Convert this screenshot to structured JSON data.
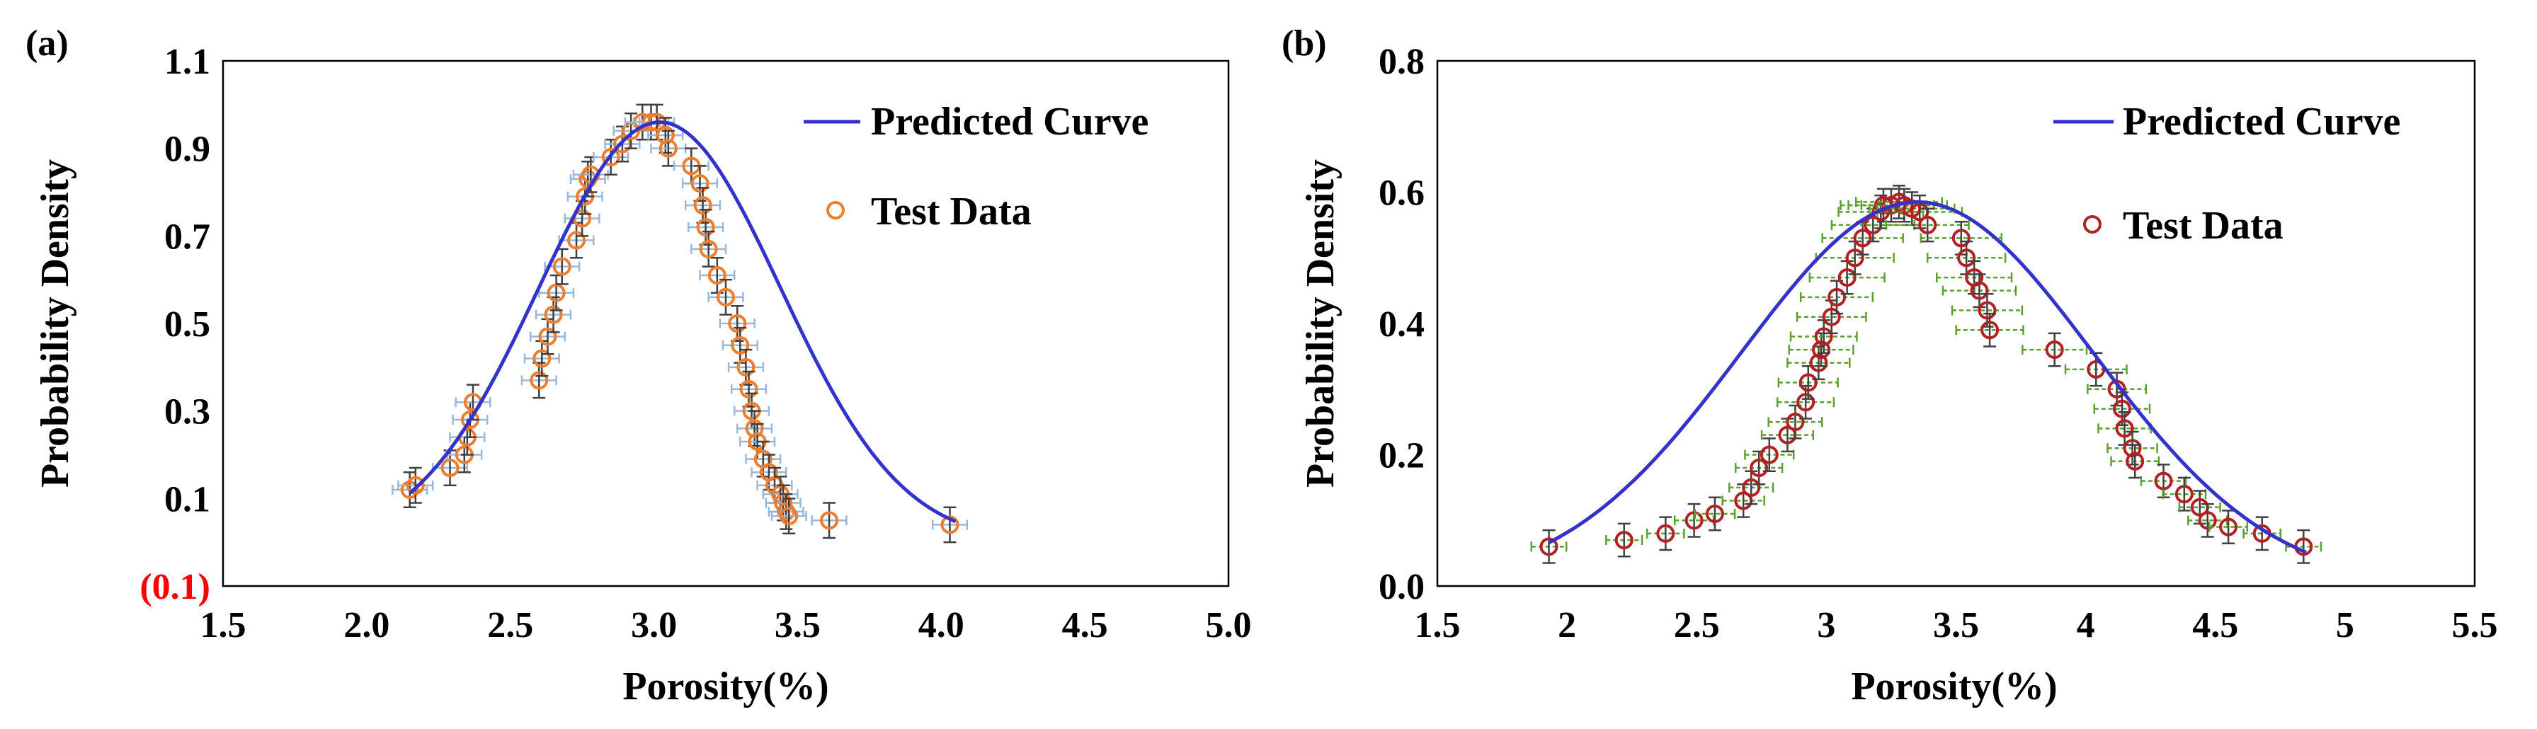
{
  "chart_data": [
    {
      "panel_label": "(a)",
      "type": "scatter",
      "title": "",
      "xlabel": "Porosity(%)",
      "ylabel": "Probability Density",
      "xlim": [
        1.5,
        5.0
      ],
      "ylim": [
        -0.1,
        1.1
      ],
      "xticks": [
        "1.5",
        "2.0",
        "2.5",
        "3.0",
        "3.5",
        "4.0",
        "4.5",
        "5.0"
      ],
      "xtick_values": [
        1.5,
        2.0,
        2.5,
        3.0,
        3.5,
        4.0,
        4.5,
        5.0
      ],
      "yticks": [
        "(0.1)",
        "0.1",
        "0.3",
        "0.5",
        "0.7",
        "0.9",
        "1.1"
      ],
      "ytick_values": [
        -0.1,
        0.1,
        0.3,
        0.5,
        0.7,
        0.9,
        1.1
      ],
      "ytick_colors": [
        "#ff0000",
        "#000000",
        "#000000",
        "#000000",
        "#000000",
        "#000000",
        "#000000"
      ],
      "grid": false,
      "legend": {
        "position": "top-right",
        "curve_label": "Predicted Curve",
        "data_label": "Test Data"
      },
      "curve": {
        "name": "Predicted Curve",
        "color": "#3333cc",
        "mean": 3.02,
        "sd": 0.42,
        "peak": 0.96,
        "x_range": [
          2.15,
          4.05
        ]
      },
      "points_series": {
        "name": "Test Data",
        "color": "#ed7d31",
        "xerr_color": "#9bb7d8",
        "yerr_color": "#404040",
        "xerr": 0.06,
        "yerr": 0.04,
        "x": [
          2.15,
          2.17,
          2.29,
          2.34,
          2.35,
          2.36,
          2.37,
          2.6,
          2.61,
          2.63,
          2.65,
          2.66,
          2.68,
          2.73,
          2.75,
          2.76,
          2.77,
          2.78,
          2.85,
          2.89,
          2.92,
          2.96,
          2.99,
          3.01,
          3.04,
          3.05,
          3.13,
          3.16,
          3.17,
          3.18,
          3.19,
          3.22,
          3.25,
          3.29,
          3.3,
          3.32,
          3.33,
          3.34,
          3.35,
          3.36,
          3.38,
          3.4,
          3.42,
          3.44,
          3.45,
          3.46,
          3.47,
          3.61,
          4.03
        ],
        "y": [
          0.12,
          0.13,
          0.17,
          0.2,
          0.24,
          0.28,
          0.32,
          0.37,
          0.42,
          0.47,
          0.52,
          0.57,
          0.63,
          0.69,
          0.74,
          0.79,
          0.83,
          0.84,
          0.88,
          0.91,
          0.94,
          0.96,
          0.96,
          0.96,
          0.93,
          0.9,
          0.86,
          0.82,
          0.77,
          0.72,
          0.67,
          0.61,
          0.56,
          0.5,
          0.45,
          0.4,
          0.35,
          0.3,
          0.26,
          0.23,
          0.19,
          0.16,
          0.13,
          0.11,
          0.09,
          0.07,
          0.06,
          0.05,
          0.04
        ]
      }
    },
    {
      "panel_label": "(b)",
      "type": "scatter",
      "title": "",
      "xlabel": "Porosity(%)",
      "ylabel": "Probability Density",
      "xlim": [
        1.5,
        5.5
      ],
      "ylim": [
        0.0,
        0.8
      ],
      "xticks": [
        "1.5",
        "2",
        "2.5",
        "3",
        "3.5",
        "4",
        "4.5",
        "5",
        "5.5"
      ],
      "xtick_values": [
        1.5,
        2.0,
        2.5,
        3.0,
        3.5,
        4.0,
        4.5,
        5.0,
        5.5
      ],
      "yticks": [
        "0.0",
        "0.2",
        "0.4",
        "0.6",
        "0.8"
      ],
      "ytick_values": [
        0.0,
        0.2,
        0.4,
        0.6,
        0.8
      ],
      "ytick_colors": [
        "#000000",
        "#000000",
        "#000000",
        "#000000",
        "#000000"
      ],
      "grid": false,
      "legend": {
        "position": "top-right",
        "curve_label": "Predicted Curve",
        "data_label": "Test Data"
      },
      "curve": {
        "name": "Predicted Curve",
        "color": "#3333cc",
        "mean": 3.35,
        "sd": 0.68,
        "peak": 0.585,
        "x_range": [
          1.93,
          4.85
        ]
      },
      "points_series": {
        "name": "Test Data",
        "color": "#b22222",
        "xerr_color": "#5aa02c",
        "yerr_color": "#404040",
        "xerr_scale": 0.45,
        "yerr": 0.025,
        "x": [
          1.93,
          2.22,
          2.38,
          2.49,
          2.57,
          2.68,
          2.71,
          2.74,
          2.78,
          2.85,
          2.88,
          2.92,
          2.93,
          2.97,
          2.98,
          2.99,
          3.02,
          3.04,
          3.08,
          3.11,
          3.14,
          3.18,
          3.21,
          3.22,
          3.25,
          3.28,
          3.3,
          3.33,
          3.36,
          3.39,
          3.52,
          3.54,
          3.57,
          3.59,
          3.62,
          3.63,
          3.88,
          4.04,
          4.12,
          4.14,
          4.15,
          4.18,
          4.19,
          4.3,
          4.38,
          4.44,
          4.47,
          4.55,
          4.68,
          4.84
        ],
        "y": [
          0.06,
          0.07,
          0.08,
          0.1,
          0.11,
          0.13,
          0.15,
          0.18,
          0.2,
          0.23,
          0.25,
          0.28,
          0.31,
          0.34,
          0.36,
          0.38,
          0.41,
          0.44,
          0.47,
          0.5,
          0.53,
          0.55,
          0.57,
          0.58,
          0.58,
          0.585,
          0.58,
          0.575,
          0.57,
          0.55,
          0.53,
          0.5,
          0.47,
          0.45,
          0.42,
          0.39,
          0.36,
          0.33,
          0.3,
          0.27,
          0.24,
          0.21,
          0.19,
          0.16,
          0.14,
          0.12,
          0.1,
          0.09,
          0.08,
          0.06
        ]
      }
    }
  ]
}
